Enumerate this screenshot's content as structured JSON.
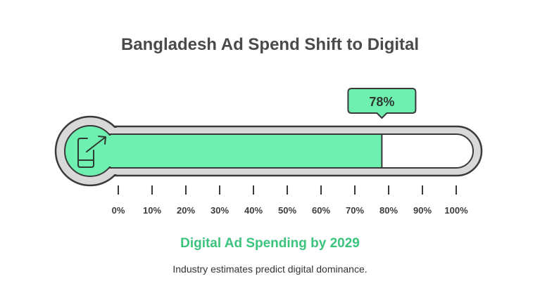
{
  "title": "Bangladesh Ad Spend Shift to Digital",
  "progress": {
    "value": 78,
    "label": "78%",
    "min": 0,
    "max": 100,
    "ticks": [
      "0%",
      "10%",
      "20%",
      "30%",
      "40%",
      "50%",
      "60%",
      "70%",
      "80%",
      "90%",
      "100%"
    ]
  },
  "subtitle": "Digital Ad Spending by 2029",
  "caption": "Industry estimates predict digital dominance.",
  "icon": "phone-growth-icon",
  "colors": {
    "fill": "#6ef0b0",
    "fill_dark": "#3cc47f",
    "track": "#d9d9d9",
    "outline": "#3a3a3a",
    "title": "#4a4a4a"
  }
}
